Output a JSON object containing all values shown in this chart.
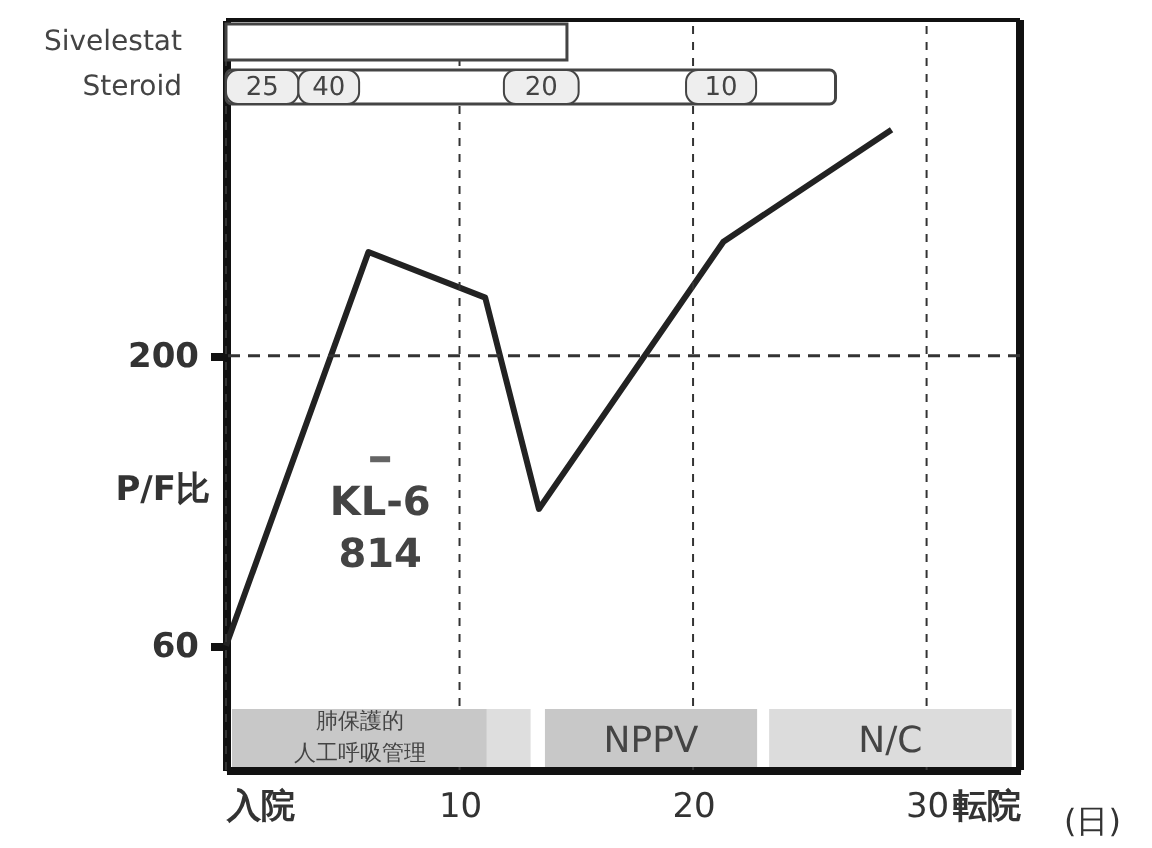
{
  "chart_data": {
    "type": "line",
    "xlabel": "(日)",
    "ylabel": "P/F比",
    "x": [
      0,
      6.1,
      11.1,
      13.4,
      21.3,
      28.5
    ],
    "series": [
      {
        "color": "#222222",
        "values": [
          60,
          250,
          228,
          126,
          255,
          309
        ]
      }
    ],
    "xlim": [
      0,
      34
    ],
    "xticks": [
      {
        "value": 0,
        "label": "入院"
      },
      10,
      20,
      30,
      {
        "value": 34,
        "label": "転院"
      }
    ],
    "ylim": [
      0,
      362
    ],
    "yticks": [
      60,
      200
    ],
    "grid": "x",
    "line_style": "solid",
    "marker": "none",
    "ref_lines": [
      {
        "axis": "y",
        "value": 200,
        "line_style": "dashed",
        "color": "#333333"
      }
    ],
    "bands": [
      {
        "axis": "x",
        "from": 0,
        "to": 14.6,
        "label": "Sivelestat",
        "color": "#ffffff"
      },
      {
        "axis": "x",
        "from": 0,
        "to": 26.1,
        "label": "Steroid",
        "color": "#ffffff"
      },
      {
        "axis": "x",
        "from": 0,
        "to": 3.1,
        "label": "25",
        "color": "#eeeeee"
      },
      {
        "axis": "x",
        "from": 3.1,
        "to": 5.7,
        "label": "40",
        "color": "#eeeeee"
      },
      {
        "axis": "x",
        "from": 11.9,
        "to": 15.1,
        "label": "20",
        "color": "#eeeeee"
      },
      {
        "axis": "x",
        "from": 19.7,
        "to": 22.7,
        "label": "10",
        "color": "#eeeeee"
      },
      {
        "axis": "x",
        "from": 0.3,
        "to": 11.2,
        "label": "肺保護的人工呼吸管理",
        "color": "#c8c8c8"
      },
      {
        "axis": "x",
        "from": 11.2,
        "to": 13.0,
        "color": "#dedede"
      },
      {
        "axis": "x",
        "from": 13.7,
        "to": 22.7,
        "label": "NPPV",
        "color": "#c8c8c8"
      },
      {
        "axis": "x",
        "from": 23.3,
        "to": 33.6,
        "label": "N/C",
        "color": "#dcdcdc"
      }
    ],
    "annotations": [
      {
        "text": "KL-6\n814",
        "x": 6.6,
        "y": 150
      }
    ]
  }
}
